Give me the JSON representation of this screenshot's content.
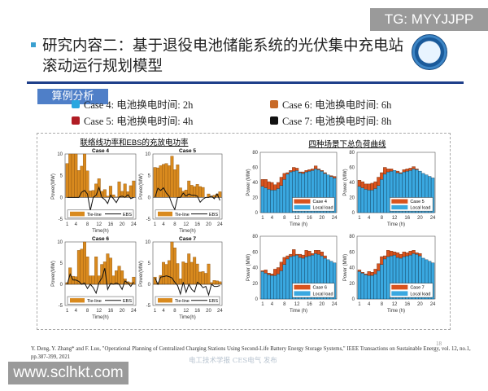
{
  "watermark_top": "TG: MYYJJPP",
  "watermark_bottom": "www.sclhkt.com",
  "title": "研究内容二：基于退役电池储能系统的光伏集中充电站滚动运行规划模型",
  "section_label": "算例分析",
  "legend_cases": [
    {
      "label": "Case 4: 电池换电时间: 2h",
      "color": "#2aa6e0"
    },
    {
      "label": "Case 5: 电池换电时间: 4h",
      "color": "#b01c24"
    },
    {
      "label": "Case 6: 电池换电时间: 6h",
      "color": "#c86a28"
    },
    {
      "label": "Case 7: 电池换电时间: 8h",
      "color": "#111111"
    }
  ],
  "citation": "Y. Deng, Y. Zhang* and F. Luo, \"Operational Planning of Centralized Charging Stations Using Second-Life Battery Energy Storage Systems,\" IEEE Transactions on Sustainable Energy, vol. 12, no.1, pp.387-399, 2021",
  "publisher_watermark": "电工技术学报 CES电气 发布",
  "page_number": "18",
  "panels": {
    "left_title": "联络线功率和EBS的充放电功率",
    "right_title": "四种场景下总负荷曲线"
  },
  "chart_data": [
    {
      "type": "bar+line",
      "title": "Case 4",
      "xlabel": "Time(h)",
      "ylabel": "Power(MW)",
      "ylim": [
        -5,
        10
      ],
      "yticks": [
        -5,
        0,
        5,
        10
      ],
      "xticks": [
        1,
        4,
        8,
        12,
        16,
        20,
        24
      ],
      "legend": [
        "Tie-line",
        "EBS"
      ],
      "legend_placement": "bottom",
      "series": [
        {
          "name": "Tie-line",
          "type": "bar",
          "color": "#d98a1e",
          "values": [
            7.8,
            10,
            10,
            10,
            6.2,
            7.2,
            10,
            6.1,
            1.5,
            1.6,
            3.1,
            4.3,
            1.4,
            1.8,
            0.3,
            2.6,
            0.6,
            0.1,
            3.6,
            1.4,
            3.1,
            1.3,
            2.7,
            3.8
          ]
        },
        {
          "name": "EBS",
          "type": "line",
          "color": "#111111",
          "values": [
            0,
            0,
            0,
            0,
            0,
            1.2,
            1.6,
            0.8,
            -3,
            0,
            0.5,
            2.3,
            0,
            -0.5,
            -1.4,
            0.5,
            -0.3,
            -1.2,
            0.1,
            0.3,
            0,
            0.6,
            -0.3,
            0
          ]
        }
      ]
    },
    {
      "type": "bar+line",
      "title": "Case 5",
      "xlabel": "Time(h)",
      "ylabel": "Power(MW)",
      "ylim": [
        -5,
        10
      ],
      "yticks": [
        -5,
        0,
        5,
        10
      ],
      "xticks": [
        1,
        4,
        8,
        12,
        16,
        20,
        24
      ],
      "legend": [
        "Tie-line",
        "EBS"
      ],
      "legend_placement": "bottom",
      "series": [
        {
          "name": "Tie-line",
          "type": "bar",
          "color": "#d98a1e",
          "values": [
            6.9,
            6.8,
            7.3,
            7.6,
            7.8,
            7.3,
            9.5,
            6.4,
            7.5,
            2.2,
            1.4,
            1.7,
            3.8,
            2.8,
            2.5,
            3.0,
            2.5,
            2.3,
            0,
            0.8,
            0.3,
            0.5,
            0.8,
            1.3
          ]
        },
        {
          "name": "EBS",
          "type": "line",
          "color": "#111111",
          "values": [
            0,
            2.1,
            1.6,
            2.2,
            1,
            0.3,
            -1.5,
            -2.8,
            0,
            0,
            1,
            0.3,
            0.8,
            0.5,
            0.5,
            0.3,
            -1.1,
            -0.4,
            0,
            0,
            0.3,
            -0.3,
            0.8,
            -0.7
          ]
        }
      ]
    },
    {
      "type": "bar+line",
      "title": "Case 6",
      "xlabel": "Time(h)",
      "ylabel": "Power(MW)",
      "ylim": [
        -5,
        10
      ],
      "yticks": [
        -5,
        0,
        5,
        10
      ],
      "xticks": [
        1,
        4,
        8,
        12,
        16,
        20,
        24
      ],
      "legend": [
        "Tie-line",
        "EBS"
      ],
      "legend_placement": "bottom",
      "series": [
        {
          "name": "Tie-line",
          "type": "bar",
          "color": "#d98a1e",
          "values": [
            0.4,
            3.9,
            1.9,
            1.8,
            8.0,
            8.3,
            10,
            6.5,
            2.0,
            2.0,
            6.5,
            2.0,
            4.7,
            5.3,
            7.2,
            6.2,
            2.0,
            3.2,
            4.3,
            3.2,
            1.3,
            0.6,
            0.4,
            1.7
          ]
        },
        {
          "name": "EBS",
          "type": "line",
          "color": "#111111",
          "values": [
            0,
            2.4,
            1.0,
            1,
            0.7,
            0,
            0.3,
            -1,
            0,
            -0.8,
            -2.1,
            0.4,
            1.5,
            3.8,
            -1.2,
            0.2,
            0,
            0.3,
            0,
            -1.2,
            0.8,
            0.3,
            -0.5,
            0.5
          ]
        }
      ]
    },
    {
      "type": "bar+line",
      "title": "Case 7",
      "xlabel": "Time(h)",
      "ylabel": "Power(MW)",
      "ylim": [
        -5,
        10
      ],
      "yticks": [
        -5,
        0,
        5,
        10
      ],
      "xticks": [
        1,
        4,
        8,
        12,
        16,
        20,
        24
      ],
      "legend": [
        "Tie-line",
        "EBS"
      ],
      "legend_placement": "bottom",
      "series": [
        {
          "name": "Tie-line",
          "type": "bar",
          "color": "#d98a1e",
          "values": [
            1.7,
            0.3,
            2.1,
            5.2,
            4.7,
            5.6,
            10,
            8.6,
            4.9,
            1.3,
            5.3,
            5.0,
            7.2,
            5.2,
            6.4,
            4.8,
            2.9,
            3.0,
            2.6,
            4.8,
            0.4,
            0.9,
            0.8,
            0.6
          ]
        },
        {
          "name": "EBS",
          "type": "line",
          "color": "#111111",
          "values": [
            1.5,
            0,
            1.7,
            1.8,
            2,
            1.8,
            1.5,
            0.5,
            -0.3,
            -2.3,
            0.5,
            -1.9,
            0,
            -1.2,
            -1.8,
            0.5,
            0,
            -0.8,
            -0.5,
            -2.5,
            0,
            -0.5,
            -0.5,
            -0.3
          ]
        }
      ]
    },
    {
      "type": "stacked-bar",
      "title": "",
      "xlabel": "Time (h)",
      "ylabel": "Power (MW)",
      "ylim": [
        0,
        80
      ],
      "yticks": [
        0,
        20,
        40,
        60,
        80
      ],
      "xticks": [
        1,
        4,
        8,
        12,
        16,
        20,
        24
      ],
      "legend": [
        "Case 4",
        "Local load"
      ],
      "legend_placement": "bottom-right",
      "series": [
        {
          "name": "Local load",
          "color": "#3aa8e0",
          "values": [
            35,
            33,
            31,
            30,
            30,
            32,
            36,
            44,
            51,
            54,
            55,
            56,
            53,
            52,
            54,
            55,
            56,
            58,
            57,
            55,
            52,
            50,
            48,
            46
          ]
        },
        {
          "name": "Case 4",
          "color": "#d9531e",
          "total": [
            44,
            44,
            41,
            40,
            37,
            40,
            47,
            52,
            53,
            56,
            60,
            59,
            54,
            54,
            56,
            57,
            58,
            62,
            58,
            56,
            53,
            50,
            49,
            48
          ]
        }
      ]
    },
    {
      "type": "stacked-bar",
      "title": "",
      "xlabel": "Time (h)",
      "ylabel": "Power (MW)",
      "ylim": [
        0,
        80
      ],
      "yticks": [
        0,
        20,
        40,
        60,
        80
      ],
      "xticks": [
        1,
        4,
        8,
        12,
        16,
        20,
        24
      ],
      "legend": [
        "Case 5",
        "Local load"
      ],
      "legend_placement": "bottom-right",
      "series": [
        {
          "name": "Local load",
          "color": "#3aa8e0",
          "values": [
            35,
            33,
            31,
            30,
            30,
            32,
            36,
            44,
            51,
            54,
            55,
            56,
            53,
            52,
            54,
            55,
            56,
            58,
            57,
            55,
            52,
            50,
            48,
            46
          ]
        },
        {
          "name": "Case 5",
          "color": "#d9531e",
          "total": [
            43,
            41,
            38,
            38,
            39,
            41,
            47,
            53,
            60,
            58,
            58,
            56,
            55,
            53,
            57,
            58,
            59,
            61,
            58,
            54,
            52,
            50,
            48,
            46
          ]
        }
      ]
    },
    {
      "type": "stacked-bar",
      "title": "",
      "xlabel": "Time (h)",
      "ylabel": "Power (MW)",
      "ylim": [
        0,
        80
      ],
      "yticks": [
        0,
        20,
        40,
        60,
        80
      ],
      "xticks": [
        1,
        4,
        8,
        12,
        16,
        20,
        24
      ],
      "legend": [
        "Case 6",
        "Local load"
      ],
      "legend_placement": "bottom-right",
      "series": [
        {
          "name": "Local load",
          "color": "#3aa8e0",
          "values": [
            35,
            33,
            31,
            30,
            30,
            32,
            36,
            44,
            51,
            54,
            55,
            56,
            53,
            52,
            54,
            55,
            56,
            58,
            57,
            55,
            52,
            50,
            48,
            46
          ]
        },
        {
          "name": "Case 6",
          "color": "#d9531e",
          "total": [
            36,
            37,
            33,
            32,
            38,
            40,
            47,
            53,
            55,
            57,
            63,
            57,
            57,
            56,
            62,
            61,
            58,
            62,
            62,
            60,
            55,
            50,
            47,
            46
          ]
        }
      ]
    },
    {
      "type": "stacked-bar",
      "title": "",
      "xlabel": "Time (h)",
      "ylabel": "Power (MW)",
      "ylim": [
        0,
        80
      ],
      "yticks": [
        0,
        20,
        40,
        60,
        80
      ],
      "xticks": [
        1,
        4,
        8,
        12,
        16,
        20,
        24
      ],
      "legend": [
        "Case 7",
        "Local load"
      ],
      "legend_placement": "bottom-right",
      "series": [
        {
          "name": "Local load",
          "color": "#3aa8e0",
          "values": [
            35,
            33,
            31,
            30,
            30,
            32,
            36,
            44,
            51,
            54,
            55,
            56,
            53,
            52,
            54,
            55,
            56,
            58,
            57,
            55,
            52,
            50,
            48,
            46
          ]
        },
        {
          "name": "Case 7",
          "color": "#d9531e",
          "total": [
            37,
            34,
            32,
            35,
            34,
            38,
            45,
            54,
            55,
            62,
            61,
            60,
            59,
            57,
            60,
            59,
            61,
            62,
            59,
            58,
            52,
            50,
            47,
            45
          ]
        }
      ]
    }
  ]
}
